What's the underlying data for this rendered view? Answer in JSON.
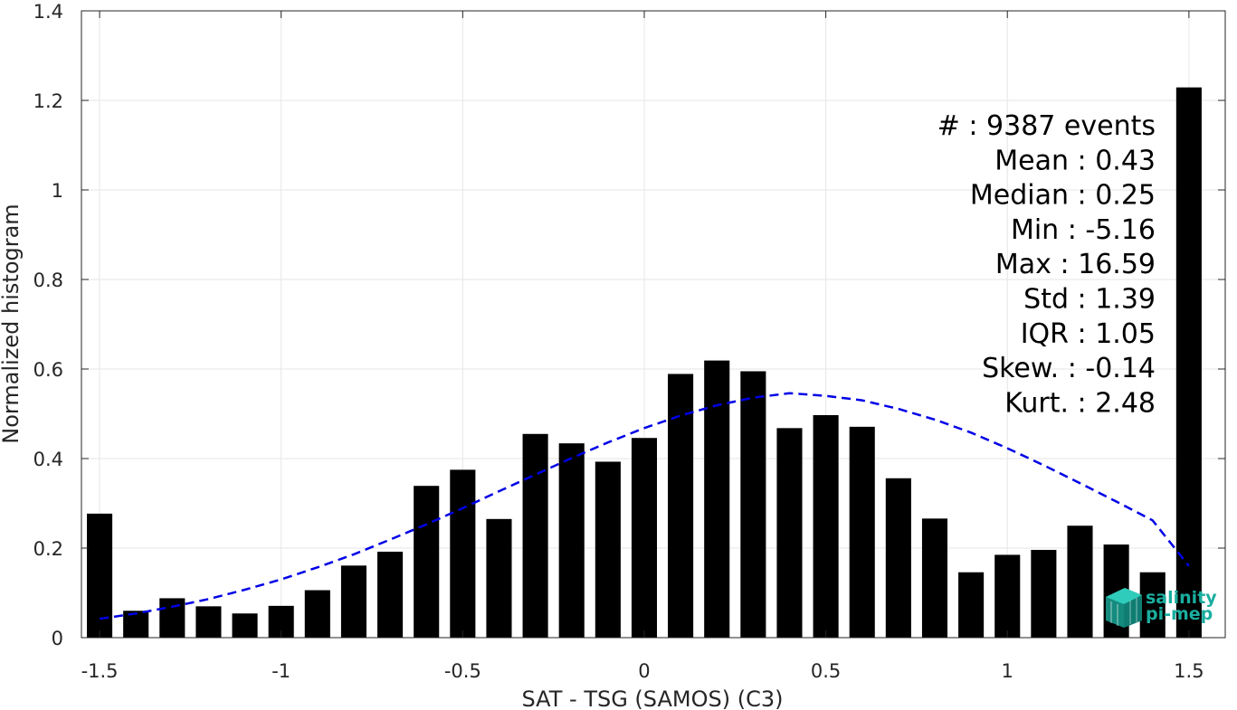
{
  "chart_data": {
    "type": "bar",
    "xlabel": "SAT - TSG (SAMOS) (C3)",
    "ylabel": "Normalized histogram",
    "xlim": [
      -1.55,
      1.6
    ],
    "ylim": [
      0,
      1.4
    ],
    "grid": true,
    "x_ticks": [
      -1.5,
      -1,
      -0.5,
      0,
      0.5,
      1,
      1.5
    ],
    "x_tick_labels": [
      "-1.5",
      "-1",
      "-0.5",
      "0",
      "0.5",
      "1",
      "1.5"
    ],
    "y_ticks": [
      0,
      0.2,
      0.4,
      0.6,
      0.8,
      1,
      1.2,
      1.4
    ],
    "y_tick_labels": [
      "0",
      "0.2",
      "0.4",
      "0.6",
      "0.8",
      "1",
      "1.2",
      "1.4"
    ],
    "bar_width": 0.07,
    "x": [
      -1.5,
      -1.4,
      -1.3,
      -1.2,
      -1.1,
      -1.0,
      -0.9,
      -0.8,
      -0.7,
      -0.6,
      -0.5,
      -0.4,
      -0.3,
      -0.2,
      -0.1,
      0.0,
      0.1,
      0.2,
      0.3,
      0.4,
      0.5,
      0.6,
      0.7,
      0.8,
      0.9,
      1.0,
      1.1,
      1.2,
      1.3,
      1.4,
      1.5
    ],
    "values": [
      0.277,
      0.06,
      0.088,
      0.07,
      0.054,
      0.071,
      0.106,
      0.161,
      0.192,
      0.339,
      0.375,
      0.265,
      0.455,
      0.434,
      0.393,
      0.446,
      0.589,
      0.619,
      0.595,
      0.468,
      0.497,
      0.471,
      0.356,
      0.266,
      0.146,
      0.185,
      0.196,
      0.25,
      0.208,
      0.146,
      1.229
    ],
    "bar_color": "#000000",
    "fit_curve": {
      "style": "dashed",
      "color": "#0000e6",
      "x": [
        -1.5,
        -1.4,
        -1.3,
        -1.2,
        -1.1,
        -1.0,
        -0.9,
        -0.8,
        -0.7,
        -0.6,
        -0.5,
        -0.4,
        -0.3,
        -0.2,
        -0.1,
        0.0,
        0.1,
        0.2,
        0.3,
        0.4,
        0.5,
        0.6,
        0.7,
        0.8,
        0.9,
        1.0,
        1.1,
        1.2,
        1.3,
        1.4,
        1.5
      ],
      "y": [
        0.042,
        0.054,
        0.069,
        0.086,
        0.107,
        0.13,
        0.157,
        0.186,
        0.219,
        0.253,
        0.289,
        0.327,
        0.364,
        0.401,
        0.436,
        0.468,
        0.496,
        0.519,
        0.536,
        0.546,
        0.54,
        0.53,
        0.511,
        0.487,
        0.458,
        0.423,
        0.385,
        0.345,
        0.304,
        0.262,
        0.16
      ]
    },
    "stats_lines": [
      "#  : 9387 events",
      "Mean : 0.43",
      "Median : 0.25",
      "Min : -5.16",
      "Max : 16.59",
      "Std : 1.39",
      "IQR : 1.05",
      "Skew. : -0.14",
      "Kurt. : 2.48"
    ]
  },
  "logo": {
    "line1": "salinity",
    "line2": "pi-mep",
    "color": "#1aae9f"
  }
}
